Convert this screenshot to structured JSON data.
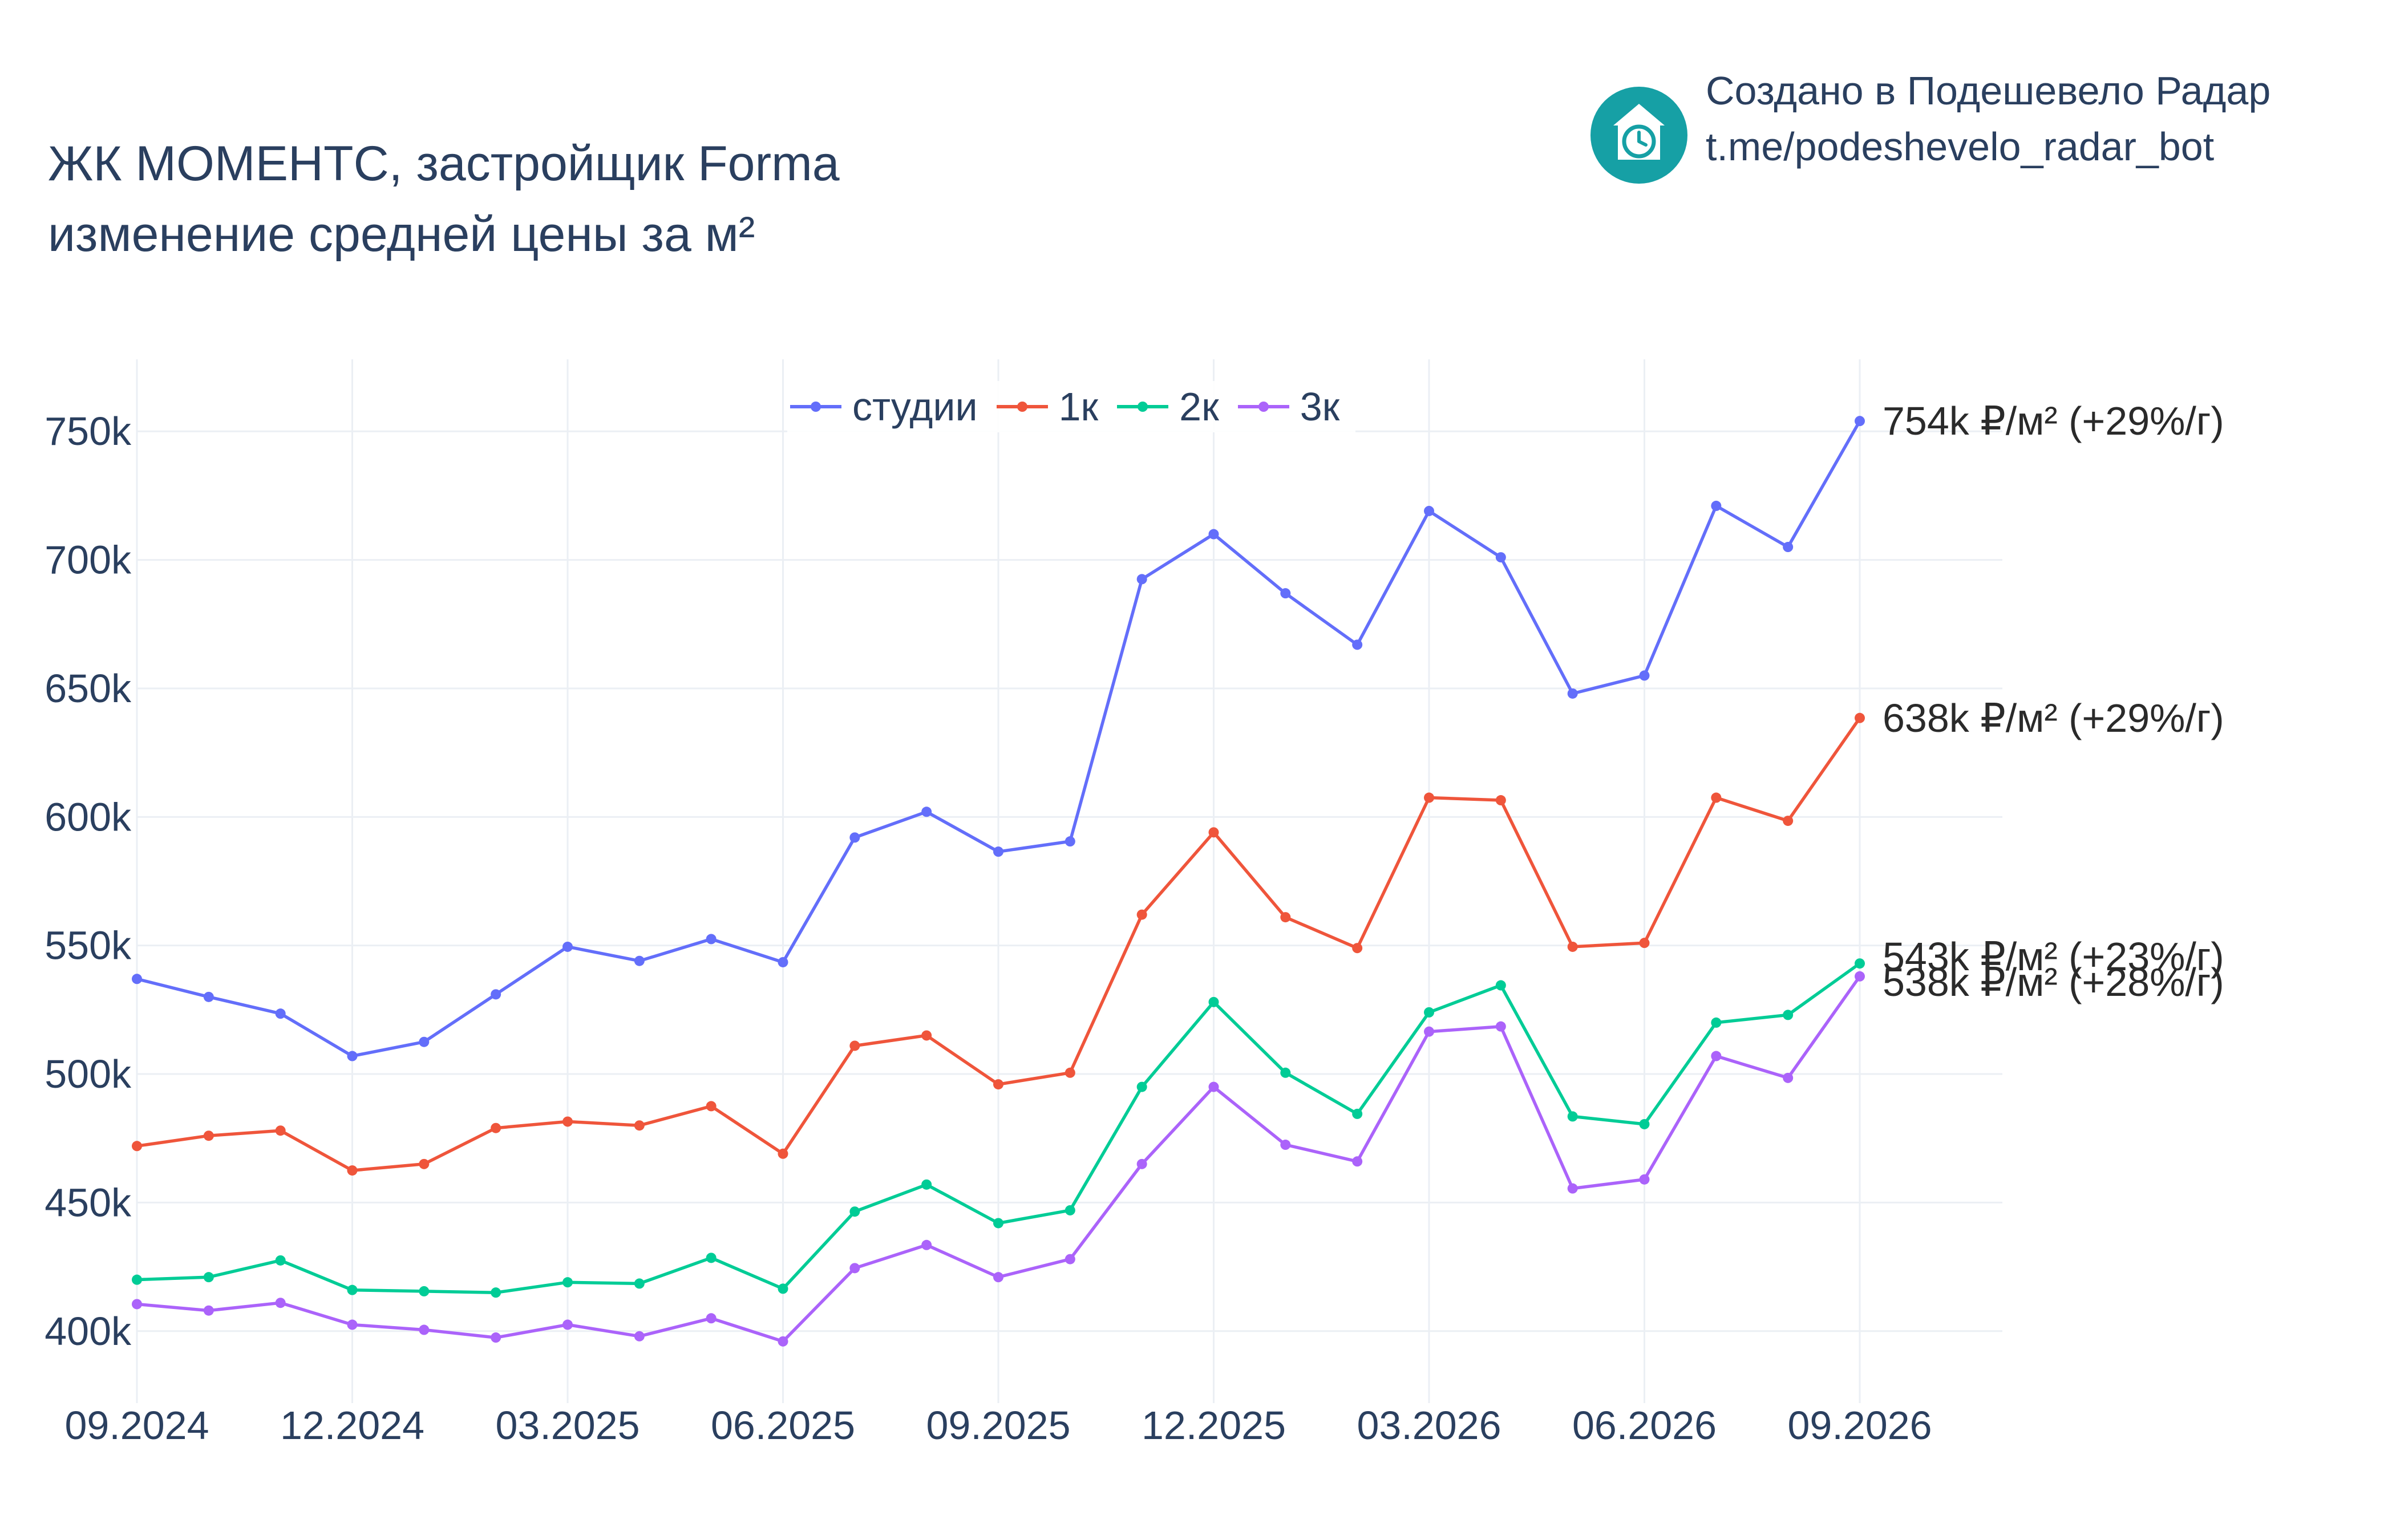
{
  "header": {
    "title_line1": "ЖК МОМЕНТС, застройщик Forma",
    "title_line2": "изменение средней цены за м²"
  },
  "branding": {
    "line1": "Создано в Подешевело Радар",
    "line2": "t.me/podeshevelo_radar_bot",
    "icon": "house-clock-icon",
    "icon_color": "#16a0a5"
  },
  "colors": {
    "grid": "#ebeff4",
    "axis_text": "#2a3f5f",
    "annotation_text": "#2a2a2a"
  },
  "chart_data": {
    "type": "line",
    "title": "ЖК МОМЕНТС, застройщик Forma изменение средней цены за м²",
    "xlabel": "",
    "ylabel": "",
    "x": [
      "09.2024",
      "10.2024",
      "11.2024",
      "12.2024",
      "01.2025",
      "02.2025",
      "03.2025",
      "04.2025",
      "05.2025",
      "06.2025",
      "07.2025",
      "08.2025",
      "09.2025",
      "10.2025",
      "11.2025",
      "12.2025",
      "01.2026",
      "02.2026",
      "03.2026",
      "04.2026",
      "05.2026",
      "06.2026",
      "07.2026",
      "08.2026",
      "09.2026"
    ],
    "x_ticks": [
      "09.2024",
      "12.2024",
      "03.2025",
      "06.2025",
      "09.2025",
      "12.2025",
      "03.2026",
      "06.2026",
      "09.2026"
    ],
    "y_ticks": [
      400000,
      450000,
      500000,
      550000,
      600000,
      650000,
      700000,
      750000
    ],
    "y_tick_labels": [
      "400k",
      "450k",
      "500k",
      "550k",
      "600k",
      "650k",
      "700k",
      "750k"
    ],
    "ylim": [
      372000,
      778000
    ],
    "grid": true,
    "legend_position": "top-center",
    "series": [
      {
        "name": "студии",
        "color": "#636efa",
        "values": [
          537000,
          530000,
          523500,
          507000,
          512500,
          531000,
          549500,
          544000,
          552500,
          543500,
          592000,
          602000,
          586500,
          590500,
          692500,
          710000,
          687000,
          667000,
          719000,
          701000,
          648000,
          655000,
          721000,
          705000,
          754000
        ],
        "end_label": "754k ₽/м² (+29%/г)"
      },
      {
        "name": "1к",
        "color": "#ef553b",
        "values": [
          472000,
          476000,
          478000,
          462500,
          465000,
          479000,
          481500,
          480000,
          487500,
          469000,
          511000,
          515000,
          496000,
          500500,
          562000,
          594000,
          561000,
          549000,
          607500,
          606500,
          549500,
          551000,
          607500,
          598500,
          638500
        ],
        "end_label": "638k ₽/м² (+29%/г)"
      },
      {
        "name": "2к",
        "color": "#00cc96",
        "values": [
          420000,
          421000,
          427500,
          416000,
          415500,
          415000,
          419000,
          418500,
          428500,
          416500,
          446500,
          457000,
          442000,
          447000,
          495000,
          528000,
          500500,
          484500,
          524000,
          534500,
          483500,
          480500,
          520000,
          523000,
          543000
        ],
        "end_label": "543k ₽/м² (+23%/г)"
      },
      {
        "name": "3к",
        "color": "#ab63fa",
        "values": [
          410500,
          408000,
          411000,
          402500,
          400500,
          397500,
          402500,
          398000,
          405000,
          396000,
          424500,
          433500,
          421000,
          428000,
          465000,
          495000,
          472500,
          466000,
          516500,
          518500,
          455500,
          459000,
          507000,
          498500,
          538000
        ],
        "end_label": "538k ₽/м² (+28%/г)"
      }
    ]
  }
}
